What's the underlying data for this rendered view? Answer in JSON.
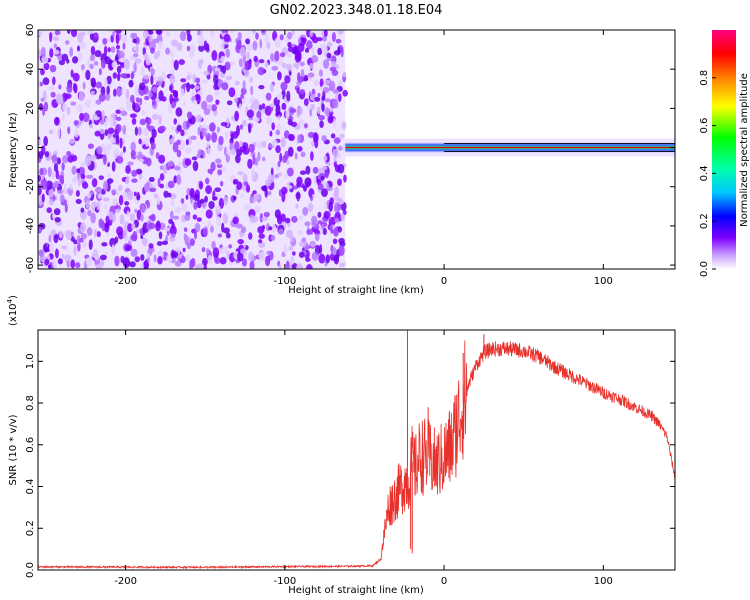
{
  "title": "GN02.2023.348.01.18.E04",
  "chart_data": [
    {
      "type": "heatmap",
      "xlabel": "Height of straight line (km)",
      "ylabel": "Frequency (Hz)",
      "xlim": [
        -255,
        145
      ],
      "ylim": [
        -62,
        60
      ],
      "xticks": [
        -200,
        -100,
        0,
        100
      ],
      "yticks": [
        -60,
        -40,
        -20,
        0,
        20,
        40,
        60
      ],
      "noise_region_x": [
        -255,
        -62
      ],
      "signal_band_x": [
        -62,
        145
      ],
      "signal_band_frequency": 0,
      "colorbar": {
        "label": "Normalized spectral amplitude",
        "range": [
          0,
          1
        ],
        "ticks": [
          0.0,
          0.2,
          0.4,
          0.6,
          0.8
        ],
        "colors": [
          "#ffffff",
          "#7f00ff",
          "#0000ff",
          "#00ffff",
          "#00ff00",
          "#ffff00",
          "#ff0000",
          "#ff0080"
        ]
      }
    },
    {
      "type": "line",
      "xlabel": "Height of straight line (km)",
      "ylabel": "SNR (10 * v/v)",
      "yscale_label": "(x10",
      "yscale_exp": "4",
      "yscale_close": ")",
      "xlim": [
        -255,
        145
      ],
      "ylim": [
        0,
        11500
      ],
      "xticks": [
        -200,
        -100,
        0,
        100
      ],
      "yticks": [
        0,
        2000,
        4000,
        6000,
        8000,
        10000
      ],
      "yticklabels": [
        "0.0",
        "0.2",
        "0.4",
        "0.6",
        "0.8",
        "1.0"
      ],
      "color": "#e8302b",
      "x": [
        -255,
        -200,
        -150,
        -100,
        -60,
        -45,
        -40,
        -38,
        -35,
        -30,
        -25,
        -22,
        -20,
        -18,
        -15,
        -10,
        -5,
        0,
        5,
        10,
        15,
        20,
        25,
        30,
        40,
        50,
        60,
        70,
        80,
        90,
        100,
        110,
        120,
        130,
        135,
        140,
        143,
        145
      ],
      "y": [
        150,
        140,
        130,
        160,
        180,
        200,
        500,
        1500,
        3000,
        3600,
        4200,
        4300,
        5200,
        4800,
        5500,
        5400,
        5000,
        5400,
        6000,
        7500,
        8800,
        9800,
        10400,
        10600,
        10600,
        10500,
        10200,
        9700,
        9300,
        8900,
        8500,
        8200,
        7800,
        7400,
        7000,
        6400,
        5200,
        4400
      ],
      "spikes": [
        {
          "x": -23,
          "y": 11500
        },
        {
          "x": -20,
          "y": 800
        },
        {
          "x": -21,
          "y": 1000
        },
        {
          "x": -10,
          "y": 7800
        },
        {
          "x": 12,
          "y": 10400
        },
        {
          "x": 25,
          "y": 11300
        }
      ]
    }
  ]
}
